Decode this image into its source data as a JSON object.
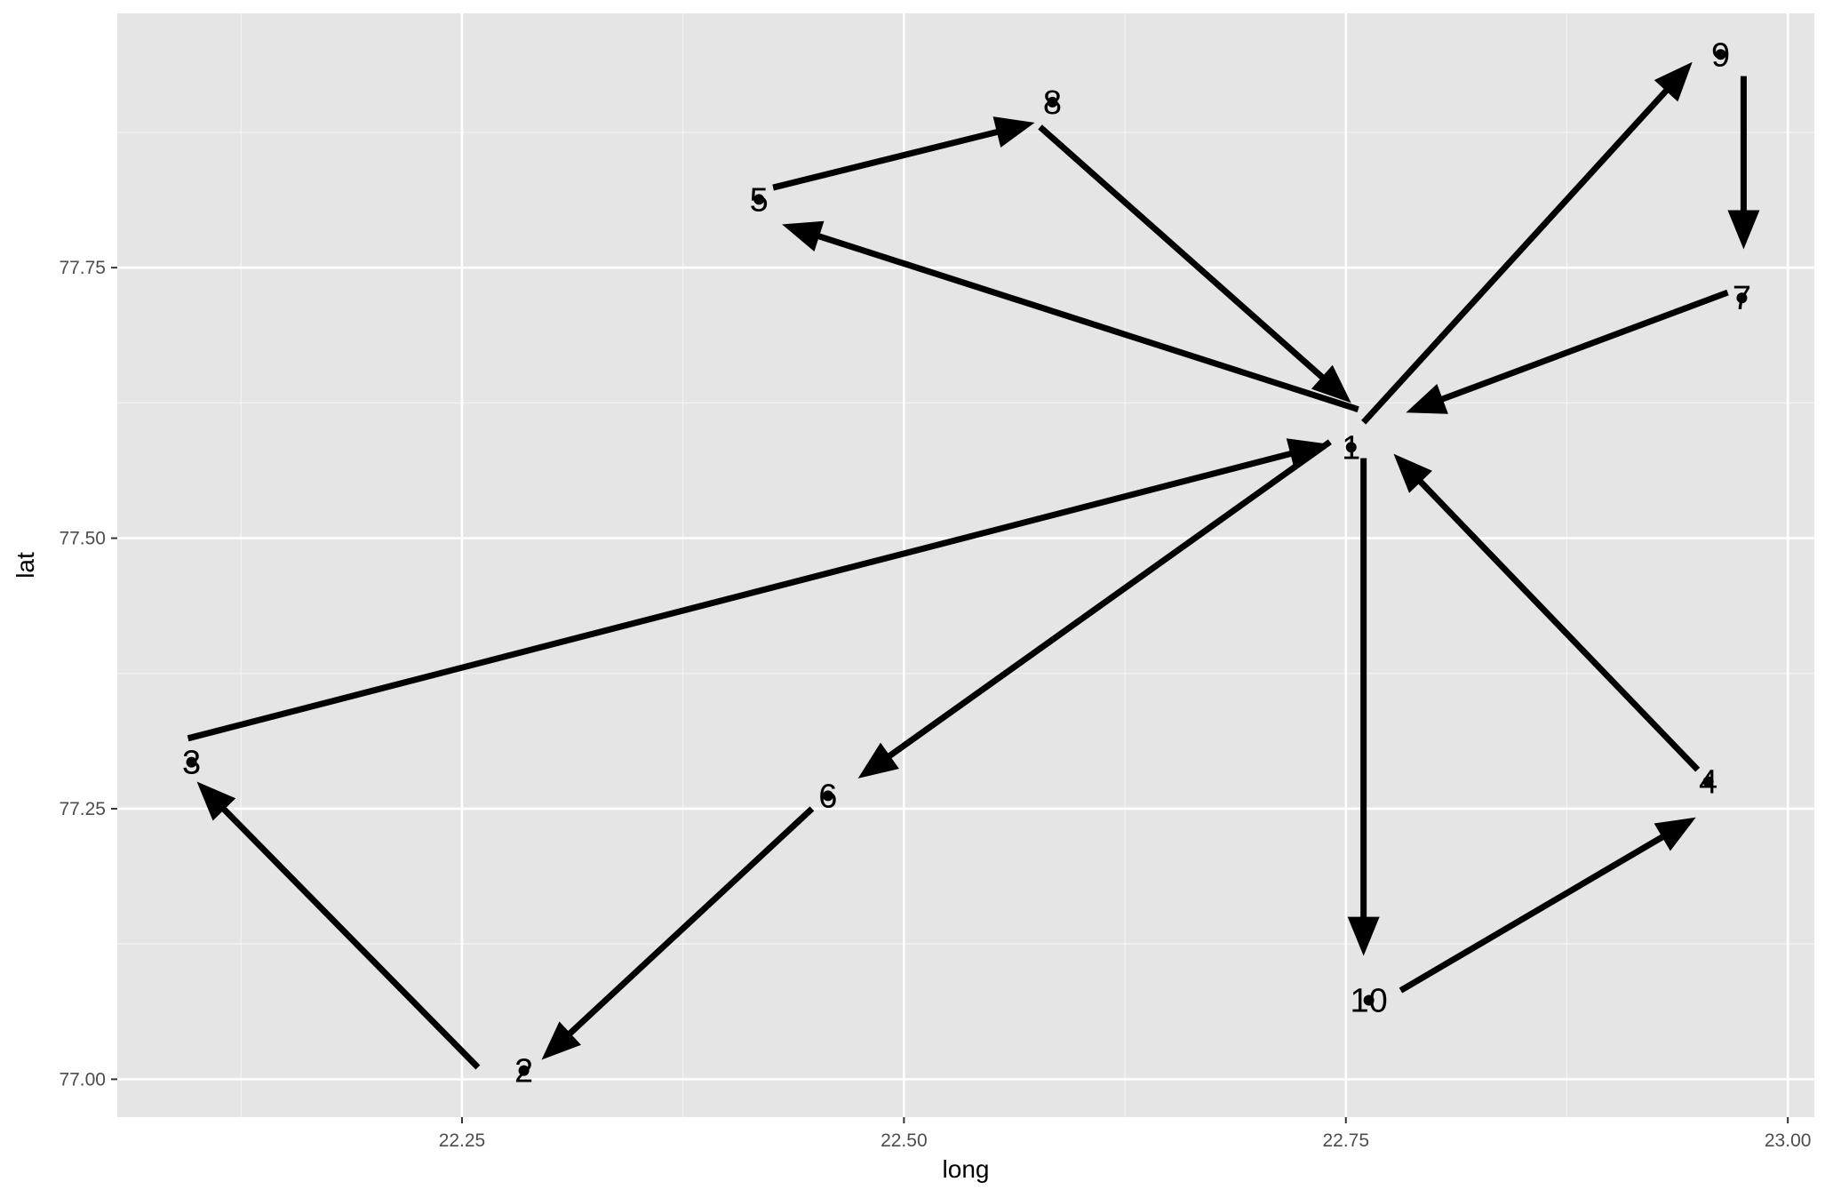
{
  "chart_data": {
    "type": "scatter",
    "title": "",
    "xlabel": "long",
    "ylabel": "lat",
    "xlim": [
      22.055,
      23.015
    ],
    "ylim": [
      76.965,
      77.985
    ],
    "x_ticks": [
      22.25,
      22.5,
      22.75,
      23.0
    ],
    "x_tick_labels": [
      "22.25",
      "22.50",
      "22.75",
      "23.00"
    ],
    "y_ticks": [
      77.0,
      77.25,
      77.5,
      77.75
    ],
    "y_tick_labels": [
      "77.00",
      "77.25",
      "77.50",
      "77.75"
    ],
    "grid": true,
    "points": [
      {
        "label": "1",
        "long": 22.753,
        "lat": 77.584
      },
      {
        "label": "2",
        "long": 22.285,
        "lat": 77.008
      },
      {
        "label": "3",
        "long": 22.097,
        "lat": 77.293
      },
      {
        "label": "4",
        "long": 22.955,
        "lat": 77.275
      },
      {
        "label": "5",
        "long": 22.418,
        "lat": 77.813
      },
      {
        "label": "6",
        "long": 22.457,
        "lat": 77.262
      },
      {
        "label": "7",
        "long": 22.974,
        "lat": 77.722
      },
      {
        "label": "8",
        "long": 22.584,
        "lat": 77.903
      },
      {
        "label": "9",
        "long": 22.962,
        "lat": 77.947
      },
      {
        "label": "10",
        "long": 22.763,
        "lat": 77.073
      }
    ],
    "arrows": [
      {
        "from": [
          22.577,
          77.88
        ],
        "to": [
          22.753,
          77.625
        ]
      },
      {
        "from": [
          22.757,
          77.619
        ],
        "to": [
          22.431,
          77.79
        ]
      },
      {
        "from": [
          22.426,
          77.824
        ],
        "to": [
          22.574,
          77.884
        ]
      },
      {
        "from": [
          22.095,
          77.315
        ],
        "to": [
          22.74,
          77.587
        ]
      },
      {
        "from": [
          22.259,
          77.011
        ],
        "to": [
          22.1,
          77.275
        ]
      },
      {
        "from": [
          22.448,
          77.25
        ],
        "to": [
          22.295,
          77.018
        ]
      },
      {
        "from": [
          22.741,
          77.589
        ],
        "to": [
          22.474,
          77.278
        ]
      },
      {
        "from": [
          22.76,
          77.574
        ],
        "to": [
          22.76,
          77.114
        ]
      },
      {
        "from": [
          22.781,
          77.082
        ],
        "to": [
          22.948,
          77.242
        ]
      },
      {
        "from": [
          22.949,
          77.286
        ],
        "to": [
          22.777,
          77.578
        ]
      },
      {
        "from": [
          22.966,
          77.727
        ],
        "to": [
          22.784,
          77.616
        ]
      },
      {
        "from": [
          22.76,
          77.607
        ],
        "to": [
          22.946,
          77.94
        ]
      },
      {
        "from": [
          22.975,
          77.927
        ],
        "to": [
          22.975,
          77.767
        ]
      }
    ],
    "colors": {
      "panel": "#e5e5e5",
      "grid_major": "#ffffff",
      "grid_minor": "#f2f2f2",
      "ink": "#000000",
      "tick_text": "#4d4d4d"
    }
  }
}
